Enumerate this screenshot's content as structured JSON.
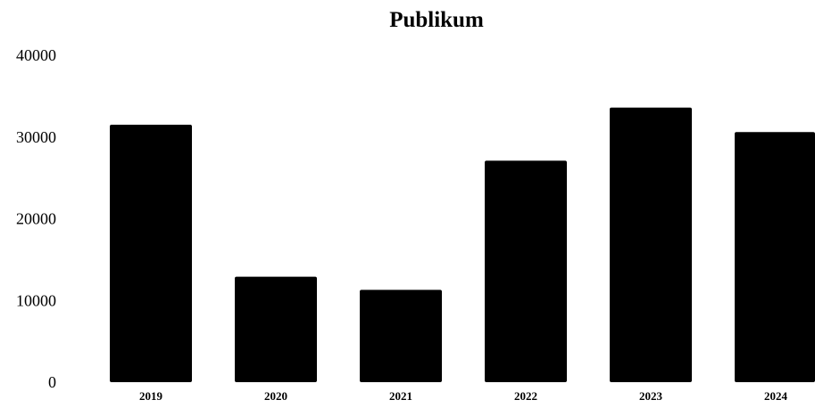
{
  "chart_data": {
    "type": "bar",
    "title": "Publikum",
    "xlabel": "",
    "ylabel": "",
    "categories": [
      "2019",
      "2020",
      "2021",
      "2022",
      "2023",
      "2024"
    ],
    "values": [
      31500,
      12900,
      11300,
      27100,
      33600,
      30600
    ],
    "ylim": [
      0,
      40000
    ],
    "yticks": [
      0,
      10000,
      20000,
      30000,
      40000
    ],
    "ytick_labels": [
      "0",
      "10000",
      "20000",
      "30000",
      "40000"
    ],
    "grid": false,
    "legend": "none",
    "bar_color": "#000000",
    "background_color": "#ffffff"
  }
}
